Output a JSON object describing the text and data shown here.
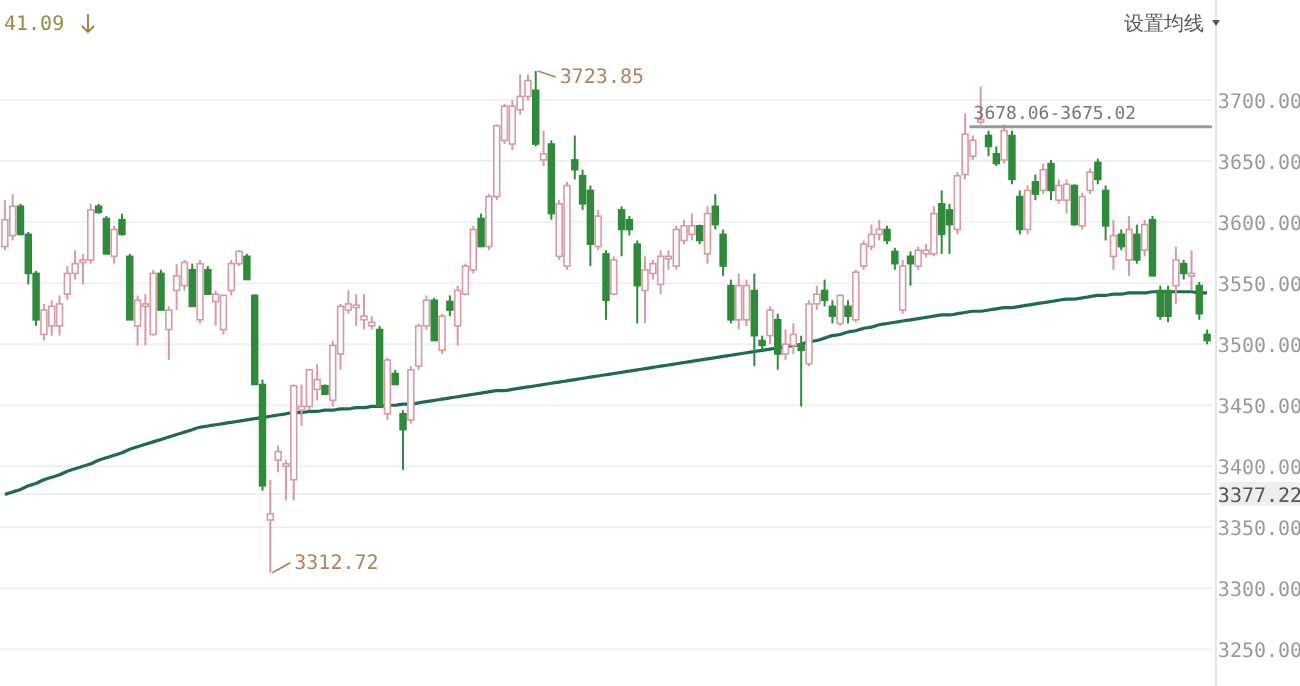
{
  "chart_data": {
    "type": "candlestick",
    "categories": [
      null,
      null,
      null,
      null,
      null,
      null,
      null,
      null,
      null,
      null,
      null,
      null,
      null,
      null,
      null,
      null,
      null,
      null,
      null,
      null,
      null,
      null,
      null,
      null,
      null,
      null,
      null,
      null,
      null,
      null,
      null,
      null,
      null,
      null,
      null,
      null,
      null,
      null,
      null,
      null,
      null,
      null,
      null,
      null,
      null,
      null,
      null,
      null,
      null,
      null,
      null,
      null,
      null,
      null,
      null,
      null,
      null,
      null,
      null,
      null,
      null,
      null,
      null,
      null,
      null,
      null,
      null,
      null,
      null,
      null,
      null,
      null,
      null,
      null,
      null,
      null,
      null,
      null,
      null,
      null,
      null,
      null,
      null,
      null,
      null,
      null,
      null,
      null,
      null,
      null,
      null,
      null,
      null,
      null,
      null,
      null,
      null,
      null,
      null,
      null,
      null,
      null,
      null,
      null,
      null,
      null,
      null,
      null,
      null,
      null,
      null,
      null,
      null,
      null,
      null,
      null,
      null,
      null,
      null,
      null,
      null,
      null,
      null,
      null,
      null,
      null,
      null,
      null,
      null,
      null,
      null,
      null,
      null,
      null,
      null,
      null,
      null,
      null,
      null,
      null,
      null,
      null,
      null,
      null,
      null,
      null,
      null,
      null,
      null,
      null,
      null,
      null,
      null,
      null,
      null
    ],
    "ohlc": [
      [
        3580,
        3618,
        3577,
        3602
      ],
      [
        3589,
        3623,
        3585,
        3613
      ],
      [
        3613,
        3615,
        3589,
        3590
      ],
      [
        3590,
        3592,
        3549,
        3558
      ],
      [
        3558,
        3560,
        3515,
        3520
      ],
      [
        3508,
        3533,
        3503,
        3528
      ],
      [
        3515,
        3536,
        3507,
        3531
      ],
      [
        3515,
        3540,
        3507,
        3533
      ],
      [
        3541,
        3564,
        3536,
        3558
      ],
      [
        3558,
        3577,
        3553,
        3566
      ],
      [
        3567,
        3574,
        3549,
        3569
      ],
      [
        3569,
        3615,
        3566,
        3610
      ],
      [
        3613,
        3615,
        3607,
        3608
      ],
      [
        3603,
        3605,
        3574,
        3574
      ],
      [
        3572,
        3597,
        3566,
        3594
      ],
      [
        3602,
        3607,
        3589,
        3590
      ],
      [
        3572,
        3574,
        3520,
        3520
      ],
      [
        3515,
        3540,
        3499,
        3536
      ],
      [
        3531,
        3541,
        3499,
        3533
      ],
      [
        3508,
        3561,
        3507,
        3558
      ],
      [
        3558,
        3561,
        3528,
        3528
      ],
      [
        3512,
        3531,
        3487,
        3528
      ],
      [
        3544,
        3566,
        3528,
        3556
      ],
      [
        3548,
        3569,
        3544,
        3567
      ],
      [
        3561,
        3566,
        3531,
        3531
      ],
      [
        3520,
        3569,
        3517,
        3566
      ],
      [
        3561,
        3564,
        3541,
        3541
      ],
      [
        3535,
        3544,
        3515,
        3541
      ],
      [
        3512,
        3541,
        3508,
        3540
      ],
      [
        3544,
        3569,
        3540,
        3566
      ],
      [
        3566,
        3577,
        3564,
        3576
      ],
      [
        3572,
        3574,
        3553,
        3553
      ],
      [
        3540,
        3541,
        3467,
        3467
      ],
      [
        3467,
        3471,
        3380,
        3384
      ],
      [
        3356,
        3389,
        3312.72,
        3361
      ],
      [
        3405,
        3417,
        3395,
        3412
      ],
      [
        3400,
        3405,
        3372,
        3402
      ],
      [
        3389,
        3467,
        3372,
        3466
      ],
      [
        3446,
        3467,
        3433,
        3449
      ],
      [
        3449,
        3479,
        3446,
        3479
      ],
      [
        3463,
        3484,
        3454,
        3471
      ],
      [
        3466,
        3467,
        3459,
        3459
      ],
      [
        3454,
        3503,
        3449,
        3499
      ],
      [
        3492,
        3533,
        3479,
        3531
      ],
      [
        3528,
        3544,
        3525,
        3533
      ],
      [
        3530,
        3541,
        3515,
        3532
      ],
      [
        3520,
        3541,
        3512,
        3523
      ],
      [
        3515,
        3523,
        3512,
        3518
      ],
      [
        3512,
        3515,
        3449,
        3449
      ],
      [
        3443,
        3489,
        3438,
        3487
      ],
      [
        3476,
        3479,
        3467,
        3467
      ],
      [
        3443,
        3446,
        3397,
        3430
      ],
      [
        3438,
        3482,
        3435,
        3479
      ],
      [
        3482,
        3517,
        3479,
        3515
      ],
      [
        3515,
        3540,
        3512,
        3536
      ],
      [
        3536,
        3538,
        3503,
        3503
      ],
      [
        3495,
        3525,
        3492,
        3523
      ],
      [
        3535,
        3540,
        3523,
        3528
      ],
      [
        3515,
        3548,
        3499,
        3544
      ],
      [
        3541,
        3566,
        3540,
        3564
      ],
      [
        3561,
        3597,
        3558,
        3594
      ],
      [
        3603,
        3607,
        3580,
        3580
      ],
      [
        3580,
        3623,
        3577,
        3621
      ],
      [
        3621,
        3680,
        3618,
        3679
      ],
      [
        3667,
        3697,
        3664,
        3695
      ],
      [
        3664,
        3700,
        3659,
        3695
      ],
      [
        3692,
        3721,
        3688,
        3703
      ],
      [
        3703,
        3721,
        3700,
        3716
      ],
      [
        3708,
        3723.85,
        3662,
        3664
      ],
      [
        3651,
        3675,
        3646,
        3656
      ],
      [
        3664,
        3667,
        3602,
        3607
      ],
      [
        3572,
        3618,
        3569,
        3615
      ],
      [
        3564,
        3633,
        3561,
        3630
      ],
      [
        3651,
        3671,
        3635,
        3643
      ],
      [
        3638,
        3643,
        3610,
        3615
      ],
      [
        3626,
        3630,
        3564,
        3582
      ],
      [
        3580,
        3610,
        3577,
        3605
      ],
      [
        3574,
        3577,
        3520,
        3536
      ],
      [
        3541,
        3572,
        3540,
        3569
      ],
      [
        3610,
        3613,
        3572,
        3594
      ],
      [
        3602,
        3605,
        3589,
        3594
      ],
      [
        3582,
        3585,
        3517,
        3548
      ],
      [
        3544,
        3572,
        3517,
        3561
      ],
      [
        3558,
        3569,
        3553,
        3566
      ],
      [
        3549,
        3577,
        3541,
        3572
      ],
      [
        3570,
        3577,
        3561,
        3572
      ],
      [
        3564,
        3597,
        3561,
        3594
      ],
      [
        3585,
        3602,
        3582,
        3597
      ],
      [
        3590,
        3607,
        3585,
        3597
      ],
      [
        3597,
        3598,
        3582,
        3585
      ],
      [
        3574,
        3613,
        3566,
        3607
      ],
      [
        3613,
        3623,
        3594,
        3598
      ],
      [
        3590,
        3594,
        3556,
        3564
      ],
      [
        3548,
        3553,
        3517,
        3520
      ],
      [
        3520,
        3558,
        3512,
        3548
      ],
      [
        3520,
        3553,
        3515,
        3548
      ],
      [
        3544,
        3558,
        3482,
        3507
      ],
      [
        3503,
        3507,
        3495,
        3499
      ],
      [
        3507,
        3531,
        3500,
        3528
      ],
      [
        3520,
        3525,
        3479,
        3492
      ],
      [
        3492,
        3512,
        3487,
        3500
      ],
      [
        3499,
        3517,
        3492,
        3508
      ],
      [
        3500,
        3507,
        3449,
        3495
      ],
      [
        3484,
        3536,
        3482,
        3533
      ],
      [
        3533,
        3548,
        3528,
        3541
      ],
      [
        3544,
        3553,
        3531,
        3536
      ],
      [
        3531,
        3536,
        3517,
        3523
      ],
      [
        3517,
        3541,
        3515,
        3540
      ],
      [
        3531,
        3536,
        3517,
        3523
      ],
      [
        3520,
        3561,
        3518,
        3559
      ],
      [
        3564,
        3585,
        3561,
        3582
      ],
      [
        3580,
        3598,
        3577,
        3590
      ],
      [
        3590,
        3602,
        3585,
        3594
      ],
      [
        3594,
        3597,
        3582,
        3585
      ],
      [
        3576,
        3579,
        3561,
        3566
      ],
      [
        3528,
        3569,
        3525,
        3564
      ],
      [
        3572,
        3576,
        3548,
        3566
      ],
      [
        3564,
        3580,
        3561,
        3577
      ],
      [
        3574,
        3582,
        3571,
        3577
      ],
      [
        3574,
        3613,
        3572,
        3607
      ],
      [
        3615,
        3626,
        3574,
        3590
      ],
      [
        3610,
        3615,
        3574,
        3598
      ],
      [
        3594,
        3641,
        3590,
        3638
      ],
      [
        3639,
        3689,
        3635,
        3672
      ],
      [
        3654,
        3671,
        3651,
        3667
      ],
      [
        3682,
        3711,
        3680,
        3684
      ],
      [
        3671,
        3675,
        3654,
        3662
      ],
      [
        3656,
        3662,
        3646,
        3648
      ],
      [
        3651,
        3680,
        3648,
        3675
      ],
      [
        3671,
        3675,
        3631,
        3635
      ],
      [
        3621,
        3626,
        3590,
        3594
      ],
      [
        3594,
        3630,
        3590,
        3626
      ],
      [
        3633,
        3639,
        3618,
        3623
      ],
      [
        3626,
        3648,
        3623,
        3643
      ],
      [
        3648,
        3651,
        3618,
        3626
      ],
      [
        3618,
        3635,
        3615,
        3630
      ],
      [
        3618,
        3635,
        3607,
        3631
      ],
      [
        3630,
        3631,
        3597,
        3598
      ],
      [
        3597,
        3624,
        3594,
        3621
      ],
      [
        3626,
        3644,
        3623,
        3641
      ],
      [
        3649,
        3652,
        3631,
        3635
      ],
      [
        3626,
        3630,
        3585,
        3597
      ],
      [
        3572,
        3602,
        3561,
        3589
      ],
      [
        3590,
        3594,
        3577,
        3580
      ],
      [
        3569,
        3605,
        3556,
        3594
      ],
      [
        3590,
        3598,
        3566,
        3569
      ],
      [
        3577,
        3602,
        3572,
        3598
      ],
      [
        3602,
        3605,
        3556,
        3556
      ],
      [
        3544,
        3548,
        3520,
        3523
      ],
      [
        3544,
        3548,
        3518,
        3523
      ],
      [
        3548,
        3580,
        3533,
        3569
      ],
      [
        3566,
        3569,
        3553,
        3558
      ],
      [
        3556,
        3577,
        3544,
        3558
      ],
      [
        3548,
        3551,
        3520,
        3525
      ],
      [
        3508,
        3512,
        3500,
        3503
      ]
    ],
    "series": [
      {
        "type": "line",
        "color": "#1f6b52",
        "values": [
          3377,
          3379,
          3381,
          3384,
          3386,
          3389,
          3391,
          3393,
          3396,
          3398,
          3400,
          3402,
          3405,
          3407,
          3409,
          3411,
          3414,
          3416,
          3418,
          3420,
          3422,
          3424,
          3426,
          3428,
          3430,
          3432,
          3433,
          3434,
          3435,
          3436,
          3437,
          3438,
          3439,
          3440,
          3441,
          3442,
          3443,
          3444,
          3444,
          3445,
          3445,
          3446,
          3446,
          3447,
          3447,
          3448,
          3448,
          3449,
          3449,
          3450,
          3450,
          3451,
          3451,
          3452,
          3453,
          3454,
          3455,
          3456,
          3457,
          3458,
          3459,
          3460,
          3461,
          3462,
          3462,
          3463,
          3464,
          3465,
          3466,
          3467,
          3468,
          3469,
          3470,
          3471,
          3472,
          3473,
          3474,
          3475,
          3476,
          3477,
          3478,
          3479,
          3480,
          3481,
          3482,
          3483,
          3484,
          3485,
          3486,
          3487,
          3488,
          3489,
          3490,
          3491,
          3492,
          3493,
          3494,
          3495,
          3496,
          3497,
          3498,
          3499,
          3500,
          3502,
          3503,
          3505,
          3507,
          3508,
          3510,
          3511,
          3513,
          3514,
          3516,
          3517,
          3518,
          3519,
          3520,
          3521,
          3522,
          3523,
          3524,
          3524,
          3525,
          3526,
          3527,
          3527,
          3528,
          3529,
          3530,
          3530,
          3531,
          3532,
          3533,
          3534,
          3535,
          3536,
          3537,
          3537,
          3538,
          3539,
          3540,
          3540,
          3541,
          3541,
          3542,
          3542,
          3542,
          3543,
          3543,
          3543,
          3543,
          3543,
          3543,
          3542,
          3542
        ]
      }
    ],
    "ylim": [
      3220,
      3782
    ],
    "yticks": [
      {
        "value": 3250,
        "label": "3250.00"
      },
      {
        "value": 3300,
        "label": "3300.00"
      },
      {
        "value": 3350,
        "label": "3350.00"
      },
      {
        "value": 3377.22,
        "label": "3377.22"
      },
      {
        "value": 3400,
        "label": "3400.00"
      },
      {
        "value": 3450,
        "label": "3450.00"
      },
      {
        "value": 3500,
        "label": "3500.00"
      },
      {
        "value": 3550,
        "label": "3550.00"
      },
      {
        "value": 3600,
        "label": "3600.00"
      },
      {
        "value": 3650,
        "label": "3650.00"
      },
      {
        "value": 3700,
        "label": "3700.00"
      }
    ],
    "grid": "y",
    "ref_lines": [
      {
        "axis": "y",
        "value": 3678.06,
        "label": "3678.06-3675.02",
        "color": "#999999"
      }
    ],
    "annotations": [
      "41.09",
      "设置均线",
      "3723.85",
      "3312.72"
    ]
  }
}
